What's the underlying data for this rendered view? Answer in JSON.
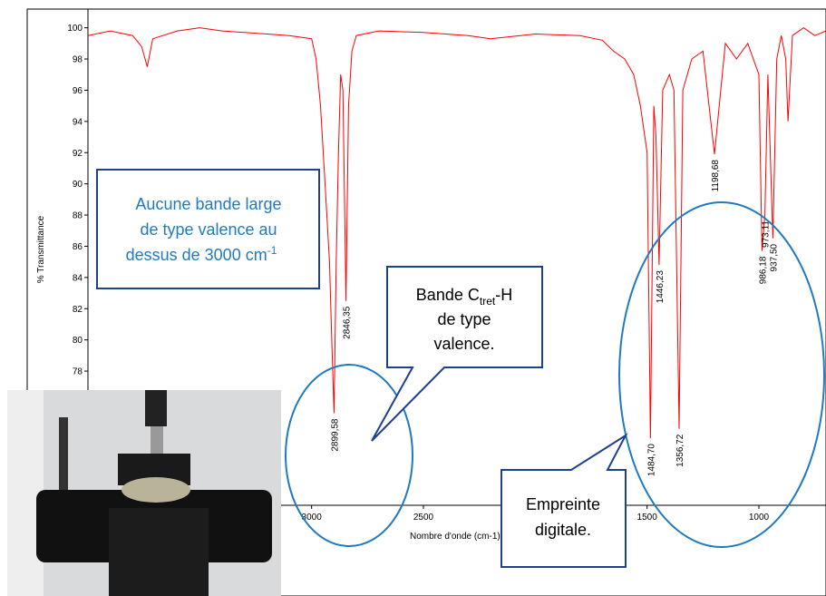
{
  "chart_data": {
    "type": "line",
    "color": "#ff0000",
    "x": [
      4000,
      3900,
      3800,
      3760,
      3735,
      3710,
      3600,
      3500,
      3400,
      3300,
      3100,
      3000,
      2980,
      2960,
      2940,
      2920,
      2910,
      2899.58,
      2890,
      2880,
      2870,
      2860,
      2846.35,
      2835,
      2820,
      2800,
      2700,
      2500,
      2300,
      2200,
      2000,
      1800,
      1700,
      1650,
      1600,
      1560,
      1530,
      1500,
      1484.7,
      1470,
      1460,
      1446.23,
      1430,
      1400,
      1380,
      1356.72,
      1340,
      1300,
      1250,
      1198.68,
      1150,
      1100,
      1050,
      1000,
      986.18,
      973.11,
      960,
      937.5,
      920,
      900,
      880,
      870,
      850,
      800,
      750,
      700
    ],
    "values": [
      99.5,
      99.8,
      99.5,
      98.8,
      97.5,
      99.3,
      99.8,
      100,
      99.8,
      99.7,
      99.5,
      99.3,
      98,
      95,
      90,
      85,
      80,
      75.3,
      85,
      92,
      97,
      96,
      82.5,
      95,
      98.5,
      99.5,
      99.8,
      99.7,
      99.5,
      99.3,
      99.6,
      99.5,
      99.2,
      98.5,
      98,
      97,
      95,
      92,
      73.7,
      95,
      93,
      84.8,
      96,
      97,
      96,
      74.3,
      96,
      98,
      98.5,
      91.9,
      99,
      98,
      99,
      97,
      85.7,
      88,
      97,
      86.5,
      98,
      99.5,
      98,
      94,
      99.5,
      100,
      99.5,
      99.8
    ],
    "xlim": [
      4000,
      700
    ],
    "ylim": [
      69.4,
      101.2
    ],
    "xticks": [
      3000,
      2500,
      1500,
      1000
    ],
    "yticks": [
      78,
      80,
      82,
      84,
      86,
      88,
      90,
      92,
      94,
      96,
      98,
      100
    ],
    "xlabel": "Nombre d'onde (cm-1)",
    "ylabel": "% Transmittance",
    "peak_labels": [
      {
        "value": 2899.58,
        "label": "2899,58"
      },
      {
        "value": 2846.35,
        "label": "2846,35"
      },
      {
        "value": 1484.7,
        "label": "1484,70"
      },
      {
        "value": 1446.23,
        "label": "1446,23"
      },
      {
        "value": 1356.72,
        "label": "1356,72"
      },
      {
        "value": 1198.68,
        "label": "1198,68"
      },
      {
        "value": 986.18,
        "label": "986,18"
      },
      {
        "value": 973.11,
        "label": "973,11"
      },
      {
        "value": 937.5,
        "label": "937,50"
      }
    ]
  },
  "annotations": {
    "no_band": [
      "Aucune bande large",
      "de type valence au",
      "dessus de 3000 cm",
      "-1"
    ],
    "ch_band": [
      "Bande C",
      "tret",
      "-H",
      "de type",
      "valence."
    ],
    "fingerprint": [
      "Empreinte",
      "digitale."
    ]
  }
}
